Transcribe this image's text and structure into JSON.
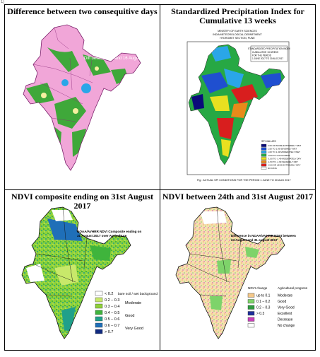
{
  "corner_mark": "1)",
  "panels": [
    {
      "title": "Difference between two consequitive days",
      "map_label": "Diff between 17 and 16 August"
    },
    {
      "title": "Standardized Precipitation Index for Cumulative 13 weeks",
      "header_lines": [
        "MINISTRY OF EARTH SCIENCES",
        "INDIA METEOROLOGICAL DEPARTMENT",
        "HYDROMET SECTION, PUNE"
      ],
      "box_lines": [
        "STANDARDIZED PRECIPITATION INDEX",
        "CUMULATIVE 13 WEEKS",
        "FOR THE PERIOD",
        "1 JUNE 2017 TO 30 AUG 2017"
      ],
      "legend_title": "SPI VALUES",
      "legend": [
        {
          "label": "2.00 OR MORE EXTREMELY WET",
          "color": "#0a0a7a"
        },
        {
          "label": "1.50 TO 1.99 SEVERELY WET",
          "color": "#1f4fd0"
        },
        {
          "label": "1.00 TO 1.49 MODERATELY WET",
          "color": "#2aa6e8"
        },
        {
          "label": "-0.99 TO 0.99 NORMAL",
          "color": "#27a844"
        },
        {
          "label": "-1.00 TO -1.49 MODERATELY DRY",
          "color": "#e8e020"
        },
        {
          "label": "-1.50 TO -1.99 SEVERELY DRY",
          "color": "#e88a1a"
        },
        {
          "label": "-2.00 OR LESS EXTREMELY DRY",
          "color": "#d81e1e"
        },
        {
          "label": "NO DATA",
          "color": "#ffffff"
        }
      ],
      "caption": "Fig : ACTUAL SPI CONDITIONS FOR THE PERIOD 1 JUNE TO 30 AUG 2017"
    },
    {
      "title": "NDVI composite ending on 31st August 2017",
      "map_label_lines": [
        "NOAA/AVHRR NDVI Composite ending on",
        "31 August 2017 over Agriculture"
      ],
      "legend": [
        {
          "label": "< 0.2",
          "color": "#ffffff",
          "group": "bare soil / wet background"
        },
        {
          "label": "0.2 – 0.3",
          "color": "#c8e86a",
          "group": "Moderate"
        },
        {
          "label": "0.3 – 0.4",
          "color": "#8fd13a",
          "group": ""
        },
        {
          "label": "0.4 – 0.5",
          "color": "#3fb43c",
          "group": "Good"
        },
        {
          "label": "0.5 – 0.6",
          "color": "#20a08a",
          "group": ""
        },
        {
          "label": "0.6 – 0.7",
          "color": "#1f6fb8",
          "group": "Very Good"
        },
        {
          "label": "> 0.7",
          "color": "#102a80",
          "group": ""
        }
      ]
    },
    {
      "title": "NDVI between 24th and 31st August 2017",
      "map_label_lines": [
        "Difference in NOAA/AVHRR NDVI between",
        "24 August and 31 august 2017"
      ],
      "legend_head_left": "NDVI change",
      "legend_head_right": "Agricultural progress",
      "legend": [
        {
          "label": "up to 0.1",
          "color": "#f4c88a",
          "group": "Moderate"
        },
        {
          "label": "0.1 – 0.2",
          "color": "#7ed36a",
          "group": "Good"
        },
        {
          "label": "0.2 – 0.3",
          "color": "#2e9a3e",
          "group": "Very Good"
        },
        {
          "label": "> 0.3",
          "color": "#1f2f9a",
          "group": "Excellent"
        },
        {
          "label": "",
          "color": "#c93fb8",
          "group": "Decrease"
        },
        {
          "label": "",
          "color": "#ffffff",
          "group": "No change"
        }
      ]
    }
  ]
}
